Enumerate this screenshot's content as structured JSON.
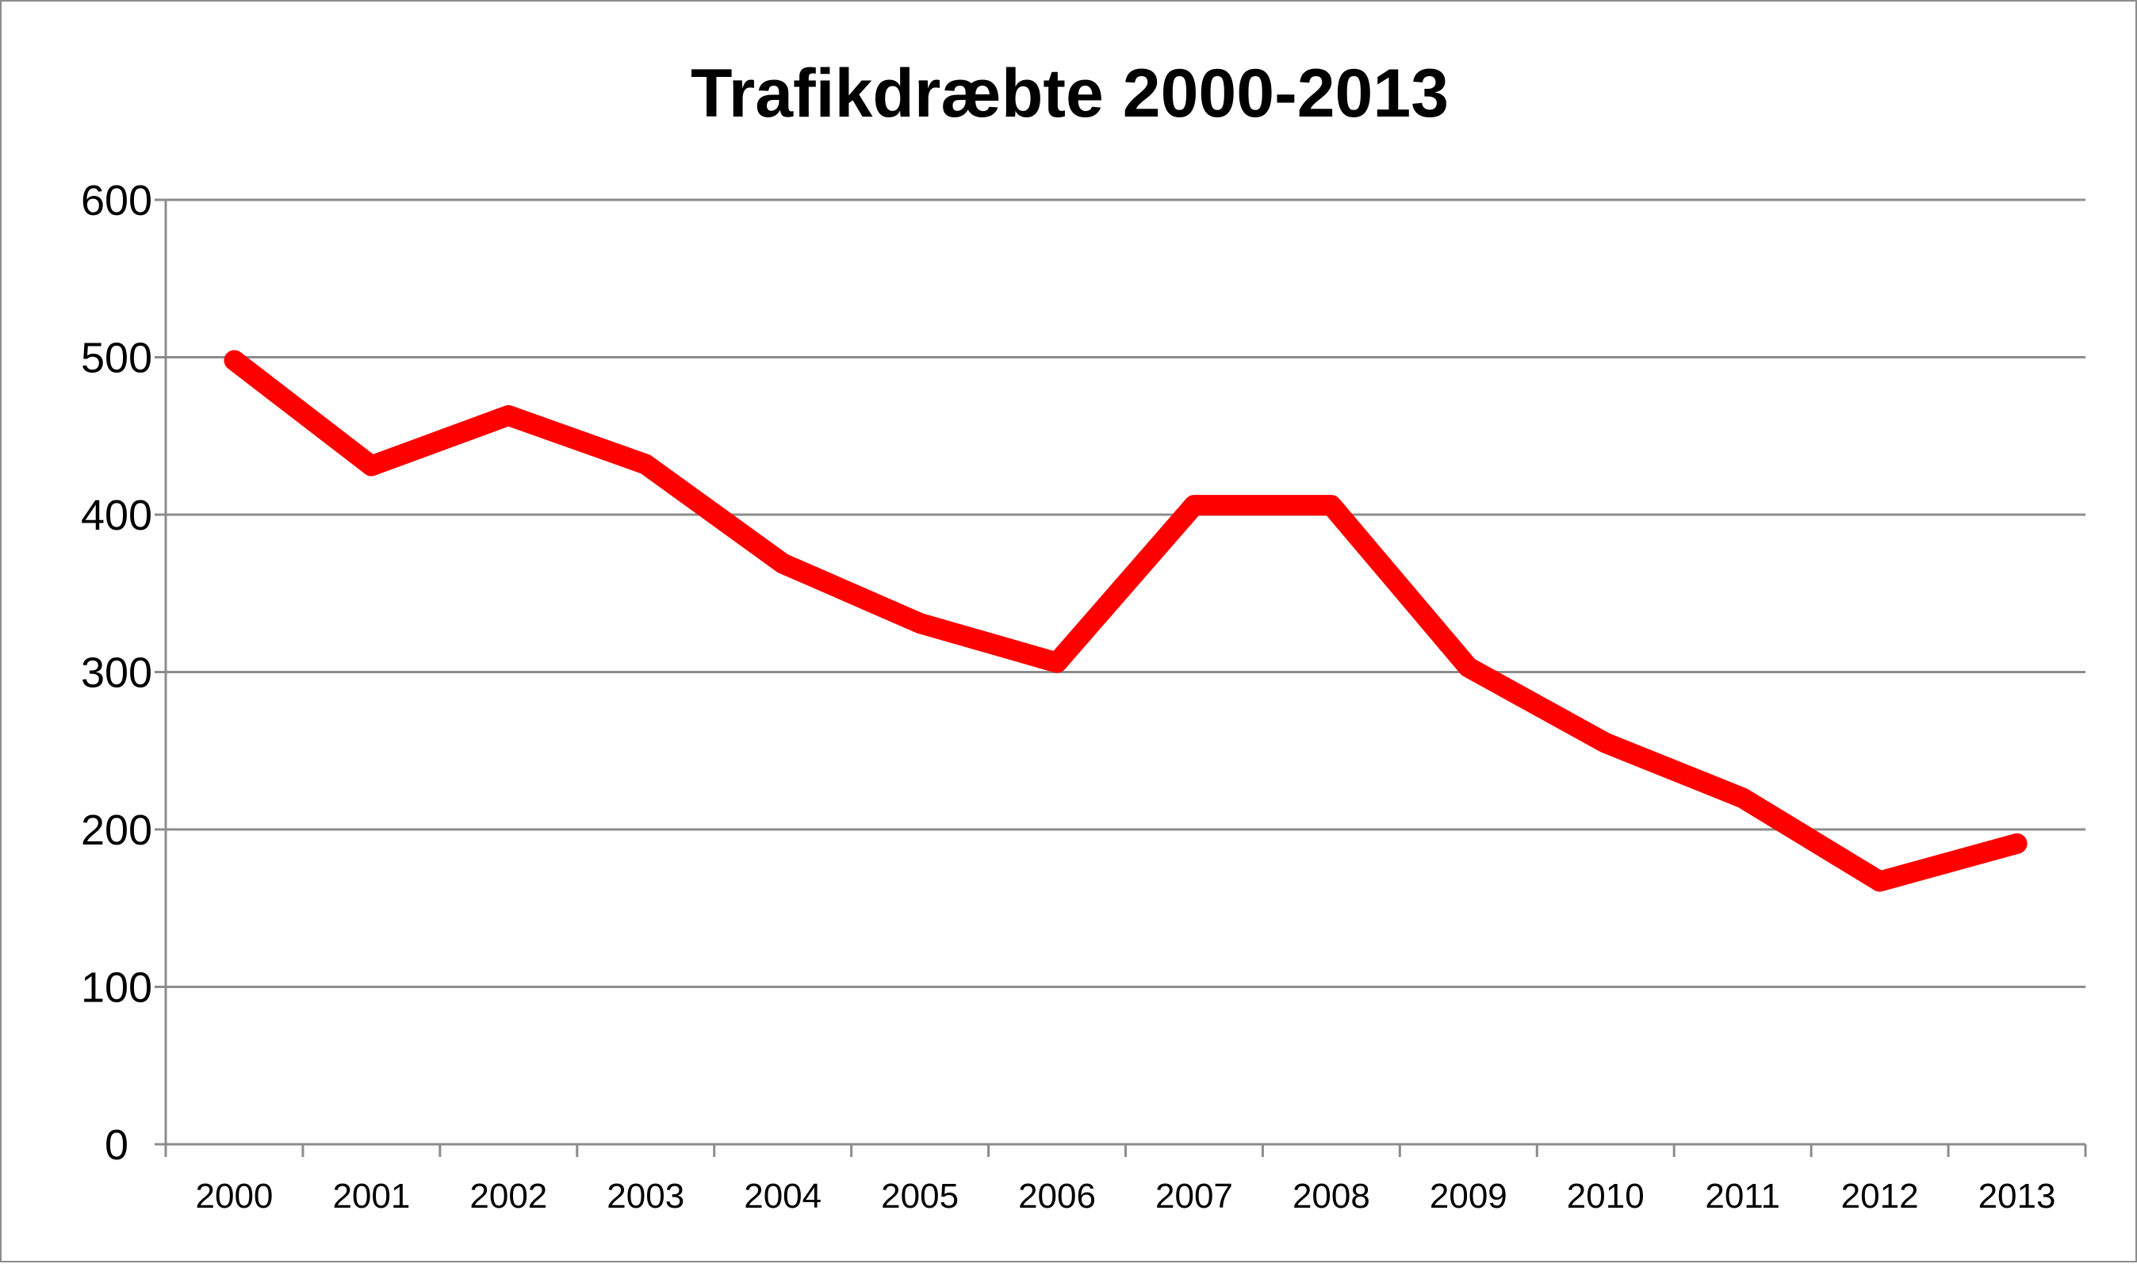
{
  "chart_data": {
    "type": "line",
    "title": "Trafikdræbte 2000-2013",
    "xlabel": "",
    "ylabel": "",
    "categories": [
      "2000",
      "2001",
      "2002",
      "2003",
      "2004",
      "2005",
      "2006",
      "2007",
      "2008",
      "2009",
      "2010",
      "2011",
      "2012",
      "2013"
    ],
    "series": [
      {
        "values": [
          498,
          431,
          463,
          432,
          369,
          331,
          306,
          406,
          406,
          303,
          255,
          220,
          167,
          191
        ]
      }
    ],
    "ylim": [
      0,
      600
    ],
    "yticks": [
      "0",
      "100",
      "200",
      "300",
      "400",
      "500",
      "600"
    ],
    "grid": "horizontal",
    "legend": "none",
    "colors": {
      "line": "#ff0000",
      "grid": "#8c8c8c",
      "axis": "#8c8c8c"
    }
  }
}
